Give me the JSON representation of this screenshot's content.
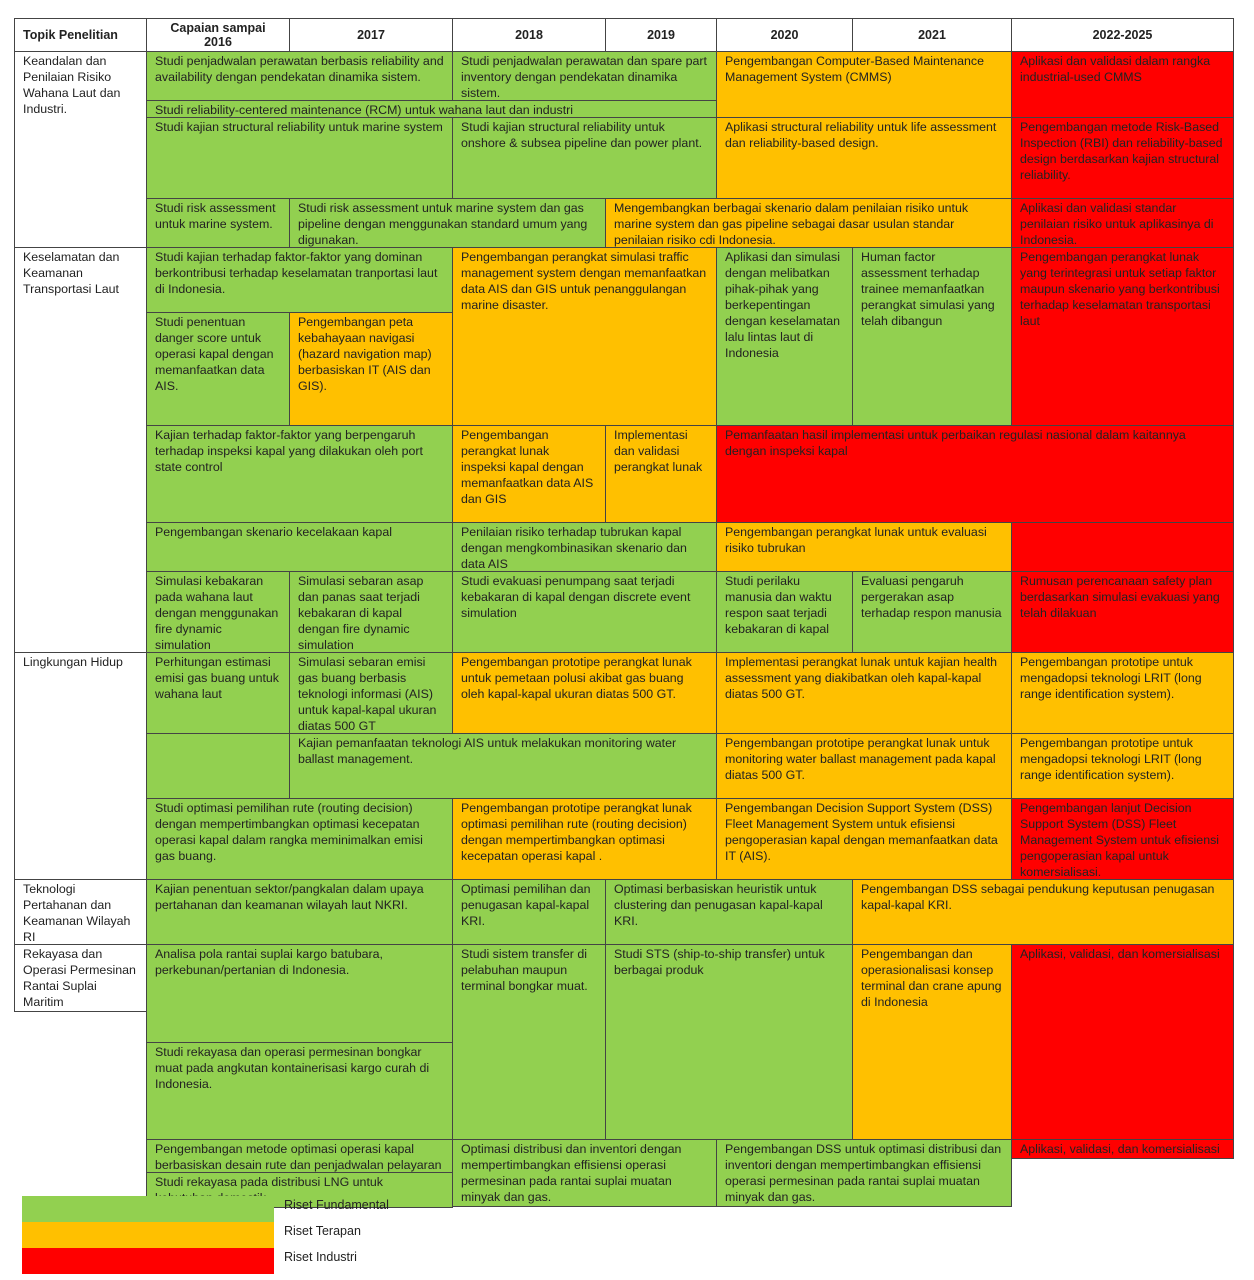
{
  "headers": [
    "Topik Penelitian",
    "Capaian sampai 2016",
    "2017",
    "2018",
    "2019",
    "2020",
    "2021",
    "2022-2025"
  ],
  "topics": [
    "Keandalan dan Penilaian Risiko Wahana Laut dan Industri.",
    "Keselamatan dan Keamanan Transportasi Laut",
    "Lingkungan Hidup",
    "Teknologi Pertahanan dan Keamanan Wilayah RI",
    "Rekayasa dan Operasi Permesinan Rantai Suplai Maritim"
  ],
  "colors": {
    "fundamental": "#92d050",
    "terapan": "#ffc000",
    "industri": "#ff0000"
  },
  "cells": [
    {
      "text": "Studi penjadwalan perawatan berbasis reliability and availability dengan pendekatan dinamika sistem.",
      "c": "g"
    },
    {
      "text": "Studi penjadwalan perawatan dan spare part inventory dengan pendekatan dinamika sistem.",
      "c": "g"
    },
    {
      "text": "Studi reliability-centered maintenance (RCM) untuk wahana laut dan industri",
      "c": "g"
    },
    {
      "text": "Pengembangan Computer-Based Maintenance Management System (CMMS)",
      "c": "o"
    },
    {
      "text": "Aplikasi dan validasi dalam rangka industrial-used CMMS",
      "c": "r"
    },
    {
      "text": "Studi kajian structural reliability untuk marine system",
      "c": "g"
    },
    {
      "text": "Studi kajian structural reliability untuk onshore & subsea pipeline dan power plant.",
      "c": "g"
    },
    {
      "text": "Aplikasi structural reliability untuk life assessment dan reliability-based design.",
      "c": "o"
    },
    {
      "text": "Pengembangan metode Risk-Based Inspection (RBI) dan reliability-based design berdasarkan kajian structural reliability.",
      "c": "r"
    },
    {
      "text": "Studi risk assessment untuk marine system.",
      "c": "g"
    },
    {
      "text": "Studi risk assessment untuk marine system dan gas pipeline dengan menggunakan standard umum yang digunakan.",
      "c": "g"
    },
    {
      "text": "Mengembangkan berbagai skenario dalam penilaian risiko untuk marine system dan gas pipeline sebagai dasar usulan standar penilaian risiko cdi Indonesia.",
      "c": "o"
    },
    {
      "text": "Aplikasi dan validasi standar penilaian risiko untuk aplikasinya di Indonesia.",
      "c": "r"
    },
    {
      "text": "Studi kajian terhadap faktor-faktor yang dominan berkontribusi terhadap keselamatan tranportasi laut di Indonesia.",
      "c": "g"
    },
    {
      "text": "Pengembangan perangkat simulasi traffic management system dengan memanfaatkan data AIS dan GIS untuk penanggulangan marine disaster.",
      "c": "o"
    },
    {
      "text": "Aplikasi dan simulasi dengan melibatkan pihak-pihak yang berkepentingan dengan keselamatan lalu lintas laut di Indonesia",
      "c": "g"
    },
    {
      "text": "Human factor assessment terhadap trainee memanfaatkan perangkat simulasi yang telah dibangun",
      "c": "g"
    },
    {
      "text": "Pengembangan perangkat lunak yang terintegrasi untuk setiap faktor maupun skenario yang berkontribusi terhadap keselamatan transportasi laut",
      "c": "r"
    },
    {
      "text": "Studi penentuan danger score untuk operasi kapal dengan memanfaatkan data AIS.",
      "c": "g"
    },
    {
      "text": "Pengembangan peta kebahayaan navigasi (hazard navigation map) berbasiskan IT (AIS dan GIS).",
      "c": "o"
    },
    {
      "text": "Kajian terhadap faktor-faktor yang berpengaruh terhadap inspeksi kapal yang dilakukan oleh port state control",
      "c": "g"
    },
    {
      "text": "Pengembangan perangkat lunak inspeksi kapal dengan memanfaatkan data AIS dan GIS",
      "c": "o"
    },
    {
      "text": "Implementasi dan validasi perangkat lunak",
      "c": "o"
    },
    {
      "text": "Pemanfaatan hasil implementasi untuk perbaikan regulasi nasional dalam kaitannya dengan inspeksi kapal",
      "c": "r"
    },
    {
      "text": "Pengembangan skenario kecelakaan kapal",
      "c": "g"
    },
    {
      "text": "Penilaian risiko terhadap tubrukan kapal dengan mengkombinasikan skenario dan data AIS",
      "c": "g"
    },
    {
      "text": "Pengembangan perangkat lunak untuk evaluasi risiko tubrukan",
      "c": "o"
    },
    {
      "text": "Simulasi kebakaran pada wahana laut dengan menggunakan fire dynamic simulation",
      "c": "g"
    },
    {
      "text": "Simulasi sebaran asap dan panas saat terjadi kebakaran di kapal dengan fire dynamic simulation",
      "c": "g"
    },
    {
      "text": "Studi evakuasi penumpang saat terjadi kebakaran di kapal dengan discrete event simulation",
      "c": "g"
    },
    {
      "text": "Studi perilaku manusia dan waktu respon saat terjadi kebakaran di kapal",
      "c": "g"
    },
    {
      "text": "Evaluasi pengaruh pergerakan asap terhadap respon manusia",
      "c": "g"
    },
    {
      "text": "Rumusan perencanaan safety plan berdasarkan simulasi evakuasi yang telah dilakuan",
      "c": "r"
    },
    {
      "text": "Perhitungan estimasi emisi gas buang untuk wahana laut",
      "c": "g"
    },
    {
      "text": "Simulasi sebaran emisi gas buang berbasis teknologi informasi (AIS) untuk kapal-kapal ukuran diatas 500 GT",
      "c": "g"
    },
    {
      "text": "Pengembangan prototipe perangkat lunak untuk pemetaan polusi akibat gas buang oleh kapal-kapal ukuran diatas 500 GT.",
      "c": "o"
    },
    {
      "text": "Implementasi perangkat lunak untuk kajian health assessment yang diakibatkan oleh kapal-kapal diatas 500 GT.",
      "c": "o"
    },
    {
      "text": "Pengembangan prototipe untuk mengadopsi teknologi LRIT (long range identification system).",
      "c": "o"
    },
    {
      "text": "",
      "c": "g"
    },
    {
      "text": "Kajian pemanfaatan teknologi AIS untuk melakukan monitoring water ballast management.",
      "c": "g"
    },
    {
      "text": "Pengembangan prototipe perangkat lunak untuk monitoring water ballast management pada kapal diatas 500 GT.",
      "c": "o"
    },
    {
      "text": "Pengembangan prototipe untuk mengadopsi teknologi LRIT (long range identification system).",
      "c": "o"
    },
    {
      "text": "Studi optimasi pemilihan rute (routing decision) dengan mempertimbangkan optimasi kecepatan operasi kapal dalam rangka meminimalkan emisi gas buang.",
      "c": "g"
    },
    {
      "text": "Pengembangan prototipe perangkat lunak optimasi pemilihan rute (routing decision) dengan mempertimbangkan optimasi kecepatan operasi kapal .",
      "c": "o"
    },
    {
      "text": "Pengembangan Decision Support System (DSS) Fleet Management System untuk efisiensi pengoperasian kapal dengan memanfaatkan data IT (AIS).",
      "c": "o"
    },
    {
      "text": "Pengembangan lanjut Decision Support System (DSS) Fleet Management System untuk efisiensi pengoperasian kapal untuk komersialisasi.",
      "c": "r"
    },
    {
      "text": "Kajian penentuan sektor/pangkalan dalam upaya pertahanan dan keamanan wilayah laut NKRI.",
      "c": "g"
    },
    {
      "text": "Optimasi pemilihan dan penugasan kapal-kapal KRI.",
      "c": "g"
    },
    {
      "text": "Optimasi berbasiskan heuristik untuk clustering dan penugasan kapal-kapal KRI.",
      "c": "g"
    },
    {
      "text": "Pengembangan DSS sebagai pendukung keputusan penugasan kapal-kapal KRI.",
      "c": "o"
    },
    {
      "text": "Analisa pola rantai suplai kargo batubara, perkebunan/pertanian di Indonesia.",
      "c": "g"
    },
    {
      "text": "Studi sistem transfer di pelabuhan maupun terminal bongkar muat.",
      "c": "g"
    },
    {
      "text": "Studi STS (ship-to-ship transfer) untuk berbagai produk",
      "c": "g"
    },
    {
      "text": "Pengembangan dan operasionalisasi konsep terminal dan crane apung di Indonesia",
      "c": "o"
    },
    {
      "text": "Aplikasi, validasi, dan komersialisasi",
      "c": "r"
    },
    {
      "text": "Studi rekayasa dan operasi permesinan bongkar muat pada angkutan kontainerisasi kargo curah di Indonesia.",
      "c": "g"
    },
    {
      "text": "Pengembangan metode optimasi operasi kapal berbasiskan desain rute dan penjadwalan pelayaran dengan mempertimbangkan kecepatan kapal untuk effisiensi pemakaian  bahan bakar dan penurunan emisi gas buang.",
      "c": "g"
    },
    {
      "text": "Optimasi distribusi dan inventori dengan mempertimbangkan effisiensi operasi permesinan pada rantai suplai muatan minyak dan gas.",
      "c": "g"
    },
    {
      "text": "Pengembangan DSS untuk optimasi distribusi dan inventori dengan mempertimbangkan effisiensi operasi permesinan pada rantai suplai muatan minyak dan gas.",
      "c": "g"
    },
    {
      "text": "Aplikasi, validasi, dan komersialisasi",
      "c": "r"
    },
    {
      "text": "Studi rekayasa pada distribusi LNG untuk kebutuhan domestik",
      "c": "g"
    }
  ],
  "legend": [
    {
      "label": "Riset Fundamental",
      "color": "#92d050"
    },
    {
      "label": "Riset Terapan",
      "color": "#ffc000"
    },
    {
      "label": "Riset Industri",
      "color": "#ff0000"
    }
  ]
}
